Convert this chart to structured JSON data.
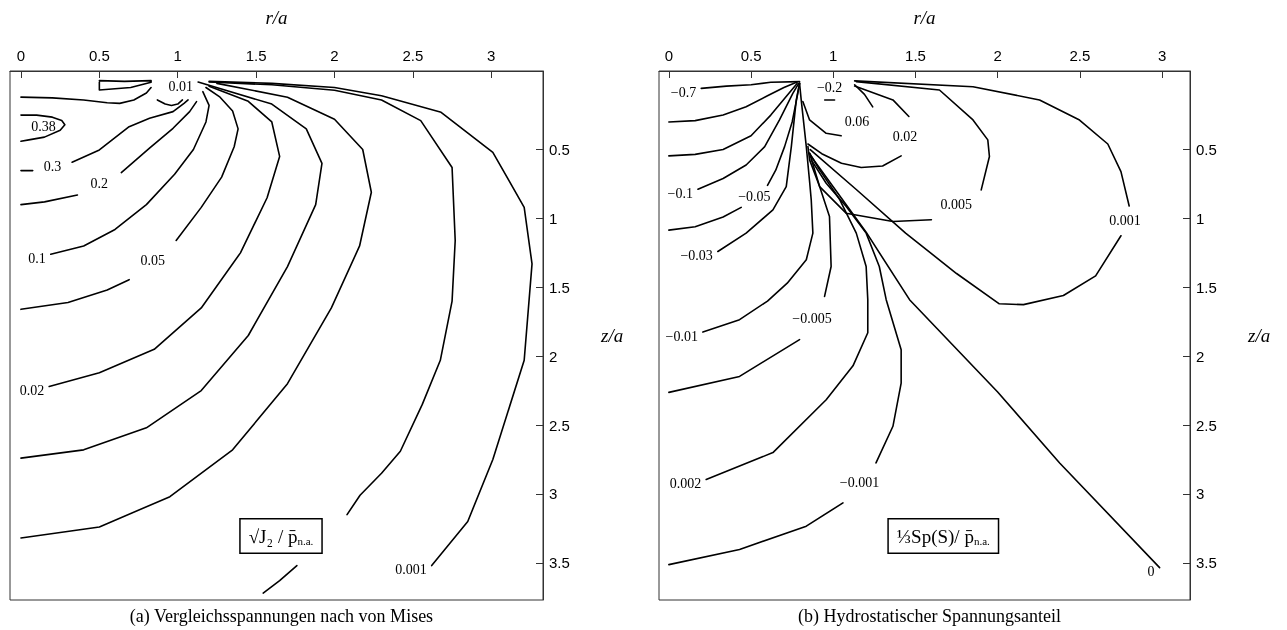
{
  "chart_data": [
    {
      "type": "line",
      "title": "(a) Vergleichsspannungen nach von Mises",
      "xlabel": "r/a",
      "ylabel": "z/a",
      "xlim": [
        -0.07,
        3.33
      ],
      "xticks": [
        0,
        0.5,
        1,
        1.5,
        2,
        2.5,
        3
      ],
      "ylim": [
        3.77,
        -0.07
      ],
      "yticks": [
        0.5,
        1,
        1.5,
        2,
        2.5,
        3,
        3.5
      ],
      "annotations": [
        "√J₂ / p̄$_{n.a.}$"
      ],
      "series": [
        {
          "color": "#000000",
          "x": [
            0.5,
            0.66,
            0.83,
            0.83,
            0.7,
            0.5,
            0.5
          ],
          "values": [
            0.0,
            0.005,
            0.0,
            0.012,
            0.05,
            0.068,
            0.01
          ]
        },
        {
          "color": "#000000",
          "x": [
            0,
            0.2,
            0.4,
            0.55,
            0.63,
            0.72,
            0.8,
            0.83
          ],
          "values": [
            0.12,
            0.125,
            0.14,
            0.16,
            0.165,
            0.14,
            0.09,
            0.05
          ]
        },
        {
          "color": "#000000",
          "x": [
            0.87,
            0.92,
            0.96,
            1.0,
            1.03
          ],
          "values": [
            0.14,
            0.17,
            0.18,
            0.17,
            0.14
          ]
        },
        {
          "name": "0.38",
          "color": "#000000",
          "x": [
            0,
            0.1,
            0.2,
            0.26,
            0.28,
            0.25,
            0.15,
            0.05,
            0
          ],
          "values": [
            0.25,
            0.25,
            0.265,
            0.29,
            0.32,
            0.36,
            0.41,
            0.43,
            0.44
          ]
        },
        {
          "name": "0.3",
          "color": "#000000",
          "x": [
            0,
            0.075,
            null,
            0.326,
            0.5,
            0.69,
            0.82,
            0.97,
            1.04,
            1.066
          ],
          "values": [
            0.653,
            0.653,
            null,
            0.592,
            0.503,
            0.334,
            0.273,
            0.225,
            0.165,
            0.14
          ]
        },
        {
          "name": "0.2",
          "color": "#000000",
          "x": [
            0,
            0.15,
            0.36,
            null,
            0.64,
            0.82,
            0.97,
            1.076,
            1.12
          ],
          "values": [
            0.9,
            0.88,
            0.83,
            null,
            0.667,
            0.49,
            0.346,
            0.225,
            0.152
          ]
        },
        {
          "name": "0.1",
          "color": "#000000",
          "x": [
            0.19,
            0.4,
            0.6,
            0.8,
            0.98,
            1.1,
            1.18,
            1.2,
            1.16
          ],
          "values": [
            1.26,
            1.2,
            1.08,
            0.9,
            0.68,
            0.5,
            0.3,
            0.18,
            0.08
          ]
        },
        {
          "name": "0.05",
          "color": "#000000",
          "x": [
            0,
            0.3,
            0.55,
            0.69,
            null,
            0.99,
            1.15,
            1.28,
            1.36,
            1.385,
            1.35,
            1.27,
            1.18
          ],
          "values": [
            1.66,
            1.61,
            1.52,
            1.445,
            null,
            1.16,
            0.92,
            0.7,
            0.48,
            0.35,
            0.22,
            0.12,
            0.05
          ]
        },
        {
          "name": "0.02",
          "color": "#000000",
          "x": [
            0.18,
            0.5,
            0.85,
            1.15,
            1.4,
            1.57,
            1.65,
            1.6,
            1.45,
            1.2
          ],
          "values": [
            2.22,
            2.12,
            1.95,
            1.65,
            1.25,
            0.85,
            0.55,
            0.3,
            0.15,
            0.04
          ]
        },
        {
          "name": "0.01",
          "color": "#000000",
          "x": [
            1.13,
            1.6,
            1.82,
            1.92,
            1.88,
            1.7,
            1.45,
            1.15,
            0.8,
            0.4,
            0
          ],
          "values": [
            0.01,
            0.17,
            0.35,
            0.6,
            0.9,
            1.35,
            1.85,
            2.25,
            2.52,
            2.68,
            2.74
          ]
        },
        {
          "color": "#000000",
          "x": [
            0,
            0.5,
            0.95,
            1.35,
            1.7,
            1.98,
            2.16,
            2.235,
            2.18,
            2.0,
            1.7,
            1.25
          ],
          "values": [
            3.32,
            3.24,
            3.02,
            2.68,
            2.2,
            1.65,
            1.2,
            0.81,
            0.5,
            0.28,
            0.12,
            0.02
          ]
        },
        {
          "color": "#000000",
          "x": [
            1.545,
            1.65,
            1.76
          ],
          "values": [
            3.72,
            3.63,
            3.52
          ]
        },
        {
          "color": "#000000",
          "x": [
            2.08,
            2.163,
            2.3,
            2.42,
            2.56,
            2.675,
            2.75,
            2.77,
            2.75,
            2.55,
            2.3,
            2.0,
            1.6,
            1.2
          ],
          "values": [
            3.15,
            3.01,
            2.85,
            2.69,
            2.35,
            2.03,
            1.6,
            1.16,
            0.63,
            0.29,
            0.14,
            0.07,
            0.03,
            0.01
          ]
        },
        {
          "name": "0.001",
          "color": "#000000",
          "x": [
            2.62,
            2.85,
            3.01,
            3.21,
            3.26,
            3.21,
            3.01,
            2.68,
            2.3,
            2.0,
            1.6,
            1.2
          ],
          "values": [
            3.52,
            3.2,
            2.75,
            2.03,
            1.33,
            0.92,
            0.52,
            0.23,
            0.11,
            0.05,
            0.02,
            0.005
          ]
        }
      ]
    },
    {
      "type": "line",
      "title": "(b) Hydrostatischer Spannungsanteil",
      "xlabel": "r/a",
      "ylabel": "z/a",
      "xlim": [
        -0.06,
        3.17
      ],
      "xticks": [
        0,
        0.5,
        1,
        1.5,
        2,
        2.5,
        3
      ],
      "ylim": [
        3.77,
        -0.07
      ],
      "yticks": [
        0.5,
        1,
        1.5,
        2,
        2.5,
        3,
        3.5
      ],
      "annotations": [
        "⅓Sp(S)/ p̄$_{n.a.}$"
      ],
      "series": [
        {
          "name": "−0.7",
          "color": "#000000",
          "x": [
            0.197,
            0.35,
            0.5,
            0.62,
            0.795
          ],
          "values": [
            0.056,
            0.04,
            0.03,
            0.012,
            0.007
          ]
        },
        {
          "color": "#000000",
          "x": [
            0,
            0.16,
            0.33,
            0.47,
            0.6,
            0.7,
            0.78
          ],
          "values": [
            0.3,
            0.29,
            0.25,
            0.19,
            0.11,
            0.05,
            0.01
          ]
        },
        {
          "color": "#000000",
          "x": [
            0,
            0.16,
            0.33,
            0.5,
            0.62,
            0.71,
            0.78
          ],
          "values": [
            0.546,
            0.535,
            0.5,
            0.4,
            0.25,
            0.12,
            0.02
          ]
        },
        {
          "name": "−0.1",
          "color": "#000000",
          "x": [
            0.177,
            0.33,
            0.47,
            0.583,
            0.673,
            0.754,
            0.79
          ],
          "values": [
            0.788,
            0.71,
            0.612,
            0.479,
            0.285,
            0.092,
            0.02
          ]
        },
        {
          "name": "−0.05",
          "color": "#000000",
          "x": [
            0,
            0.16,
            0.33,
            0.44,
            null,
            0.6,
            0.65,
            0.704,
            0.75,
            0.78,
            0.795
          ],
          "values": [
            1.085,
            1.06,
            0.99,
            0.92,
            null,
            0.76,
            0.65,
            0.479,
            0.3,
            0.12,
            0.02
          ]
        },
        {
          "name": "−0.03",
          "color": "#000000",
          "x": [
            0.298,
            0.47,
            0.633,
            0.714,
            0.745,
            0.775,
            0.795
          ],
          "values": [
            1.24,
            1.107,
            0.938,
            0.769,
            0.479,
            0.14,
            0.02
          ]
        },
        {
          "name": "−0.01",
          "color": "#000000",
          "x": [
            0.207,
            0.43,
            0.6,
            0.72,
            0.836,
            0.876,
            0.866,
            0.856,
            0.836,
            0.805,
            0.795
          ],
          "values": [
            1.825,
            1.735,
            1.6,
            1.47,
            1.3,
            1.107,
            0.865,
            0.732,
            0.479,
            0.14,
            0.02
          ]
        },
        {
          "name": "−0.005",
          "color": "#000000",
          "x": [
            0,
            0.43,
            0.795,
            null,
            0.947,
            0.987,
            0.977,
            0.917,
            0.856,
            0.846
          ],
          "values": [
            2.263,
            2.147,
            1.88,
            null,
            1.566,
            1.349,
            0.986,
            0.769,
            0.575,
            0.479
          ]
        },
        {
          "name": "0.002",
          "color": "#000000",
          "x": [
            0.227,
            0.633,
            0.957,
            1.12,
            1.21,
            1.21,
            1.2,
            1.14,
            1.04,
            0.917,
            0.856
          ],
          "values": [
            2.895,
            2.7,
            2.316,
            2.07,
            1.83,
            1.59,
            1.349,
            1.107,
            0.865,
            0.648,
            0.527
          ]
        },
        {
          "name": "−0.001",
          "color": "#000000",
          "x": [
            0,
            0.43,
            0.836,
            1.059,
            null,
            1.26,
            1.363,
            1.413,
            1.413,
            1.322,
            1.28,
            1.2,
            1.079,
            0.957,
            0.866
          ],
          "values": [
            3.513,
            3.403,
            3.234,
            3.065,
            null,
            2.775,
            2.509,
            2.195,
            1.954,
            1.59,
            1.349,
            1.107,
            0.914,
            0.745,
            0.575
          ]
        },
        {
          "name": "0",
          "color": "#000000",
          "x": [
            2.985,
            2.377,
            2.0,
            1.464,
            1.2,
            0.866
          ],
          "values": [
            3.535,
            2.775,
            2.26,
            1.59,
            1.1,
            0.55
          ]
        },
        {
          "name": "0.005",
          "color": "#000000",
          "x": [
            1.14,
            1.646,
            1.85,
            1.94,
            1.95,
            1.9,
            null,
            1.597,
            1.363,
            1.078,
            0.917,
            0.856
          ],
          "values": [
            0.007,
            0.068,
            0.285,
            0.43,
            0.551,
            0.793,
            null,
            1.01,
            1.023,
            0.962,
            0.769,
            0.527
          ]
        },
        {
          "name": "0.001",
          "color": "#000000",
          "x": [
            1.13,
            1.85,
            2.255,
            2.498,
            2.67,
            2.75,
            2.8,
            null,
            2.75,
            2.596,
            2.4,
            2.157,
            2.01,
            1.75,
            1.44,
            1.14,
            0.86
          ],
          "values": [
            0.002,
            0.044,
            0.14,
            0.286,
            0.46,
            0.66,
            0.91,
            null,
            1.126,
            1.417,
            1.56,
            1.626,
            1.62,
            1.4,
            1.107,
            0.79,
            0.5
          ]
        },
        {
          "name": "0.02",
          "color": "#000000",
          "x": [
            1.13,
            1.363,
            1.46,
            null,
            1.413,
            1.3,
            1.17,
            1.05,
            0.93,
            0.846
          ],
          "values": [
            0.039,
            0.14,
            0.26,
            null,
            0.546,
            0.62,
            0.63,
            0.6,
            0.53,
            0.46
          ]
        },
        {
          "name": "0.06",
          "color": "#000000",
          "x": [
            1.13,
            1.19,
            1.24,
            null,
            1.048,
            0.957,
            0.856,
            0.815
          ],
          "values": [
            0.03,
            0.1,
            0.19,
            null,
            0.4,
            0.382,
            0.285,
            0.152
          ]
        },
        {
          "name": "−0.2",
          "color": "#000000",
          "x": [
            0.948,
            1.008
          ],
          "values": [
            0.14,
            0.14
          ]
        }
      ]
    }
  ]
}
